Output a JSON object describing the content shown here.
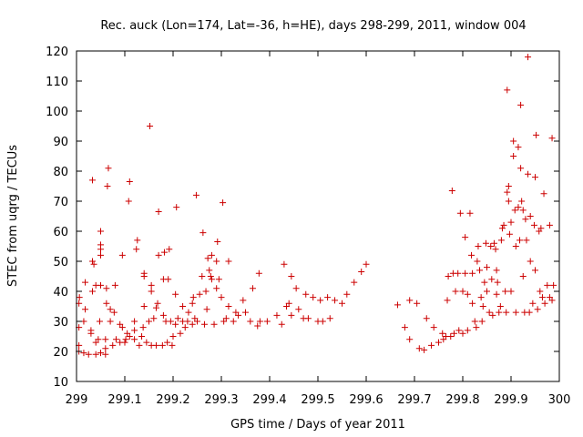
{
  "chart_data": {
    "type": "scatter",
    "title": "Rec. auck (Lon=174, Lat=-36, h=HE), days 298-299, 2011, window 004",
    "xlabel": "GPS time / Days of year 2011",
    "ylabel": "STEC from uqrg / TECUs",
    "xlim": [
      299,
      300
    ],
    "ylim": [
      10,
      120
    ],
    "xticks": [
      "299",
      "299.1",
      "299.2",
      "299.3",
      "299.4",
      "299.5",
      "299.6",
      "299.7",
      "299.8",
      "299.9",
      "300"
    ],
    "yticks": [
      "10",
      "20",
      "30",
      "40",
      "50",
      "60",
      "70",
      "80",
      "90",
      "100",
      "110",
      "120"
    ],
    "marker": "plus",
    "color": "#cc0000",
    "grid": false,
    "points": [
      [
        299.005,
        20
      ],
      [
        299.005,
        22
      ],
      [
        299.005,
        28
      ],
      [
        299.005,
        36
      ],
      [
        299.006,
        38
      ],
      [
        299.015,
        19.5
      ],
      [
        299.015,
        30
      ],
      [
        299.018,
        34
      ],
      [
        299.018,
        43
      ],
      [
        299.025,
        19
      ],
      [
        299.03,
        26
      ],
      [
        299.03,
        27
      ],
      [
        299.033,
        40
      ],
      [
        299.033,
        50
      ],
      [
        299.033,
        77
      ],
      [
        299.036,
        49
      ],
      [
        299.04,
        19
      ],
      [
        299.04,
        23
      ],
      [
        299.04,
        42
      ],
      [
        299.045,
        24
      ],
      [
        299.048,
        30
      ],
      [
        299.05,
        19.5
      ],
      [
        299.05,
        52
      ],
      [
        299.05,
        54
      ],
      [
        299.05,
        55.5
      ],
      [
        299.05,
        60
      ],
      [
        299.05,
        42
      ],
      [
        299.06,
        19
      ],
      [
        299.06,
        21
      ],
      [
        299.06,
        24
      ],
      [
        299.062,
        36
      ],
      [
        299.062,
        41
      ],
      [
        299.064,
        75
      ],
      [
        299.066,
        81
      ],
      [
        299.07,
        34
      ],
      [
        299.07,
        30
      ],
      [
        299.075,
        22
      ],
      [
        299.078,
        33
      ],
      [
        299.08,
        42
      ],
      [
        299.082,
        24
      ],
      [
        299.09,
        23
      ],
      [
        299.09,
        29
      ],
      [
        299.095,
        52
      ],
      [
        299.095,
        28
      ],
      [
        299.1,
        23
      ],
      [
        299.102,
        24
      ],
      [
        299.105,
        26
      ],
      [
        299.108,
        70
      ],
      [
        299.11,
        76.5
      ],
      [
        299.11,
        25
      ],
      [
        299.12,
        24
      ],
      [
        299.12,
        27
      ],
      [
        299.12,
        30
      ],
      [
        299.124,
        54
      ],
      [
        299.126,
        57
      ],
      [
        299.13,
        22
      ],
      [
        299.135,
        25
      ],
      [
        299.138,
        28
      ],
      [
        299.14,
        35
      ],
      [
        299.14,
        46
      ],
      [
        299.14,
        45
      ],
      [
        299.145,
        23
      ],
      [
        299.15,
        30
      ],
      [
        299.152,
        95
      ],
      [
        299.155,
        22
      ],
      [
        299.155,
        40
      ],
      [
        299.155,
        42
      ],
      [
        299.16,
        31
      ],
      [
        299.165,
        22
      ],
      [
        299.165,
        34.5
      ],
      [
        299.168,
        36
      ],
      [
        299.17,
        66.5
      ],
      [
        299.17,
        52
      ],
      [
        299.178,
        22
      ],
      [
        299.18,
        32
      ],
      [
        299.18,
        44
      ],
      [
        299.182,
        53
      ],
      [
        299.185,
        30
      ],
      [
        299.188,
        23
      ],
      [
        299.19,
        44
      ],
      [
        299.192,
        54
      ],
      [
        299.195,
        30
      ],
      [
        299.198,
        22
      ],
      [
        299.2,
        25
      ],
      [
        299.205,
        29
      ],
      [
        299.205,
        39
      ],
      [
        299.207,
        68
      ],
      [
        299.21,
        31
      ],
      [
        299.215,
        26
      ],
      [
        299.22,
        35
      ],
      [
        299.22,
        30
      ],
      [
        299.225,
        28
      ],
      [
        299.23,
        30
      ],
      [
        299.232,
        33
      ],
      [
        299.24,
        29
      ],
      [
        299.24,
        36
      ],
      [
        299.242,
        38
      ],
      [
        299.245,
        31
      ],
      [
        299.248,
        72
      ],
      [
        299.25,
        30
      ],
      [
        299.255,
        39
      ],
      [
        299.26,
        45
      ],
      [
        299.262,
        59.5
      ],
      [
        299.265,
        29
      ],
      [
        299.268,
        40
      ],
      [
        299.27,
        34
      ],
      [
        299.272,
        51
      ],
      [
        299.275,
        47
      ],
      [
        299.278,
        45
      ],
      [
        299.28,
        52
      ],
      [
        299.28,
        44
      ],
      [
        299.285,
        29
      ],
      [
        299.29,
        50
      ],
      [
        299.29,
        41
      ],
      [
        299.292,
        56.5
      ],
      [
        299.295,
        44
      ],
      [
        299.3,
        38
      ],
      [
        299.303,
        69.5
      ],
      [
        299.305,
        30
      ],
      [
        299.31,
        31
      ],
      [
        299.315,
        35
      ],
      [
        299.315,
        50
      ],
      [
        299.325,
        30
      ],
      [
        299.33,
        33
      ],
      [
        299.335,
        32
      ],
      [
        299.345,
        37
      ],
      [
        299.35,
        33
      ],
      [
        299.36,
        30
      ],
      [
        299.365,
        41
      ],
      [
        299.375,
        28.5
      ],
      [
        299.378,
        46
      ],
      [
        299.38,
        30
      ],
      [
        299.395,
        30
      ],
      [
        299.415,
        32
      ],
      [
        299.425,
        29
      ],
      [
        299.43,
        49
      ],
      [
        299.435,
        35
      ],
      [
        299.44,
        36
      ],
      [
        299.445,
        45
      ],
      [
        299.445,
        32
      ],
      [
        299.455,
        41
      ],
      [
        299.46,
        34
      ],
      [
        299.47,
        31
      ],
      [
        299.475,
        39
      ],
      [
        299.48,
        31
      ],
      [
        299.49,
        38
      ],
      [
        299.5,
        30
      ],
      [
        299.505,
        37
      ],
      [
        299.51,
        30
      ],
      [
        299.52,
        38
      ],
      [
        299.525,
        31
      ],
      [
        299.535,
        37
      ],
      [
        299.55,
        36
      ],
      [
        299.56,
        39
      ],
      [
        299.575,
        43
      ],
      [
        299.59,
        46.5
      ],
      [
        299.6,
        49
      ],
      [
        299.665,
        35.5
      ],
      [
        299.68,
        28
      ],
      [
        299.69,
        24
      ],
      [
        299.69,
        37
      ],
      [
        299.705,
        36
      ],
      [
        299.71,
        21
      ],
      [
        299.72,
        20.5
      ],
      [
        299.725,
        31
      ],
      [
        299.735,
        22
      ],
      [
        299.74,
        28
      ],
      [
        299.75,
        23
      ],
      [
        299.758,
        26
      ],
      [
        299.76,
        24
      ],
      [
        299.765,
        25
      ],
      [
        299.768,
        37
      ],
      [
        299.77,
        45
      ],
      [
        299.775,
        25
      ],
      [
        299.778,
        73.5
      ],
      [
        299.78,
        46
      ],
      [
        299.782,
        26
      ],
      [
        299.785,
        40
      ],
      [
        299.79,
        46
      ],
      [
        299.792,
        27
      ],
      [
        299.795,
        66
      ],
      [
        299.8,
        26
      ],
      [
        299.8,
        40
      ],
      [
        299.805,
        46
      ],
      [
        299.805,
        58
      ],
      [
        299.81,
        39
      ],
      [
        299.81,
        27
      ],
      [
        299.815,
        66
      ],
      [
        299.818,
        52
      ],
      [
        299.82,
        46
      ],
      [
        299.82,
        36
      ],
      [
        299.825,
        30
      ],
      [
        299.828,
        28
      ],
      [
        299.83,
        50
      ],
      [
        299.832,
        55
      ],
      [
        299.835,
        47
      ],
      [
        299.838,
        38
      ],
      [
        299.84,
        30
      ],
      [
        299.842,
        35
      ],
      [
        299.845,
        43
      ],
      [
        299.848,
        56
      ],
      [
        299.85,
        48
      ],
      [
        299.85,
        40
      ],
      [
        299.855,
        33
      ],
      [
        299.858,
        55
      ],
      [
        299.86,
        44
      ],
      [
        299.862,
        32
      ],
      [
        299.865,
        56
      ],
      [
        299.868,
        54
      ],
      [
        299.87,
        47
      ],
      [
        299.87,
        39
      ],
      [
        299.872,
        43
      ],
      [
        299.875,
        33
      ],
      [
        299.878,
        35
      ],
      [
        299.88,
        57
      ],
      [
        299.882,
        61
      ],
      [
        299.885,
        62
      ],
      [
        299.888,
        40
      ],
      [
        299.89,
        33
      ],
      [
        299.892,
        107
      ],
      [
        299.892,
        73
      ],
      [
        299.895,
        75
      ],
      [
        299.895,
        70
      ],
      [
        299.897,
        59
      ],
      [
        299.9,
        63
      ],
      [
        299.9,
        40
      ],
      [
        299.905,
        85
      ],
      [
        299.905,
        90
      ],
      [
        299.908,
        67
      ],
      [
        299.91,
        55
      ],
      [
        299.91,
        33
      ],
      [
        299.915,
        68
      ],
      [
        299.915,
        88
      ],
      [
        299.918,
        57
      ],
      [
        299.92,
        102
      ],
      [
        299.92,
        81
      ],
      [
        299.922,
        70
      ],
      [
        299.925,
        45
      ],
      [
        299.925,
        67
      ],
      [
        299.928,
        33
      ],
      [
        299.93,
        64
      ],
      [
        299.932,
        57
      ],
      [
        299.935,
        79
      ],
      [
        299.935,
        118
      ],
      [
        299.938,
        33
      ],
      [
        299.94,
        65
      ],
      [
        299.94,
        50
      ],
      [
        299.945,
        36
      ],
      [
        299.948,
        62
      ],
      [
        299.95,
        78
      ],
      [
        299.95,
        47
      ],
      [
        299.952,
        92
      ],
      [
        299.955,
        34
      ],
      [
        299.958,
        60
      ],
      [
        299.96,
        40
      ],
      [
        299.962,
        61
      ],
      [
        299.965,
        38
      ],
      [
        299.968,
        72.5
      ],
      [
        299.97,
        36
      ],
      [
        299.975,
        42
      ],
      [
        299.98,
        62
      ],
      [
        299.98,
        38
      ],
      [
        299.985,
        91
      ],
      [
        299.985,
        37
      ],
      [
        299.988,
        42
      ]
    ]
  }
}
